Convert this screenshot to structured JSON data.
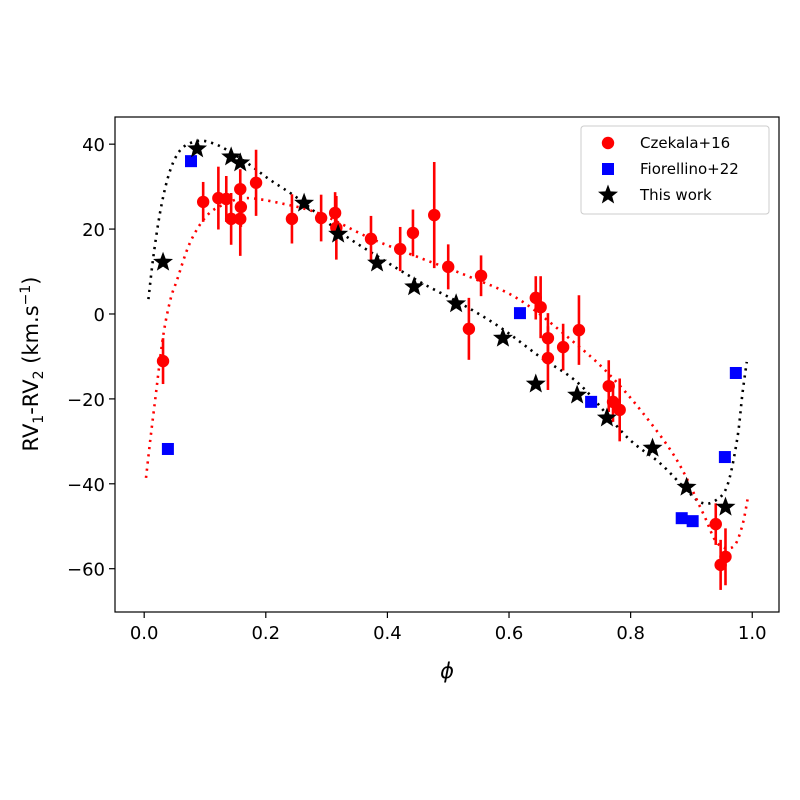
{
  "chart_data": {
    "type": "scatter",
    "title": "",
    "xlabel": "ϕ",
    "ylabel": {
      "base": "RV",
      "sub1": "1",
      "mid": "-RV",
      "sub2": "2",
      "unit_open": " (km.s",
      "sup": "−1",
      "unit_close": ")"
    },
    "xlim": [
      -0.048,
      1.044
    ],
    "ylim": [
      -70.2,
      46.4
    ],
    "xticks": [
      0.0,
      0.2,
      0.4,
      0.6,
      0.8,
      1.0
    ],
    "xtick_labels": [
      "0.0",
      "0.2",
      "0.4",
      "0.6",
      "0.8",
      "1.0"
    ],
    "yticks": [
      -60,
      -40,
      -20,
      0,
      20,
      40
    ],
    "ytick_labels": [
      "−60",
      "−40",
      "−20",
      "0",
      "20",
      "40"
    ],
    "grid": false,
    "legend": {
      "placement": "top-right",
      "entries": [
        {
          "label": "Czekala+16",
          "marker": "circle",
          "color": "#ff0000"
        },
        {
          "label": "Fiorellino+22",
          "marker": "square",
          "color": "#0000ff"
        },
        {
          "label": "This work",
          "marker": "star",
          "color": "#000000"
        }
      ]
    },
    "series": [
      {
        "name": "Czekala+16",
        "marker": "circle",
        "color": "#ff0000",
        "points": [
          {
            "x": 0.031,
            "y": -11.1,
            "err": 5.4
          },
          {
            "x": 0.097,
            "y": 26.4,
            "err": 4.7
          },
          {
            "x": 0.122,
            "y": 27.3,
            "err": 7.4
          },
          {
            "x": 0.135,
            "y": 27.1,
            "err": 5.4
          },
          {
            "x": 0.143,
            "y": 22.4,
            "err": 6.1
          },
          {
            "x": 0.158,
            "y": 22.4,
            "err": 8.7
          },
          {
            "x": 0.158,
            "y": 29.4,
            "err": 4.7
          },
          {
            "x": 0.159,
            "y": 25.2,
            "err": 4.7
          },
          {
            "x": 0.184,
            "y": 30.9,
            "err": 7.8
          },
          {
            "x": 0.243,
            "y": 22.4,
            "err": 5.8
          },
          {
            "x": 0.291,
            "y": 22.6,
            "err": 5.5
          },
          {
            "x": 0.314,
            "y": 23.8,
            "err": 4.9
          },
          {
            "x": 0.316,
            "y": 20.3,
            "err": 7.5
          },
          {
            "x": 0.373,
            "y": 17.7,
            "err": 5.4
          },
          {
            "x": 0.421,
            "y": 15.3,
            "err": 5.2
          },
          {
            "x": 0.442,
            "y": 19.1,
            "err": 5.5
          },
          {
            "x": 0.477,
            "y": 23.3,
            "err": 12.5
          },
          {
            "x": 0.5,
            "y": 11.1,
            "err": 5.3
          },
          {
            "x": 0.534,
            "y": -3.5,
            "err": 7.3
          },
          {
            "x": 0.554,
            "y": 9.0,
            "err": 4.8
          },
          {
            "x": 0.644,
            "y": 3.8,
            "err": 5.1
          },
          {
            "x": 0.652,
            "y": 1.6,
            "err": 7.3
          },
          {
            "x": 0.664,
            "y": -5.7,
            "err": 5.9
          },
          {
            "x": 0.664,
            "y": -10.4,
            "err": 7.5
          },
          {
            "x": 0.689,
            "y": -7.8,
            "err": 5.5
          },
          {
            "x": 0.715,
            "y": -3.8,
            "err": 8.2
          },
          {
            "x": 0.764,
            "y": -17.0,
            "err": 6.1
          },
          {
            "x": 0.771,
            "y": -20.7,
            "err": 4.7
          },
          {
            "x": 0.782,
            "y": -22.6,
            "err": 7.4
          },
          {
            "x": 0.94,
            "y": -49.5,
            "err": 4.9
          },
          {
            "x": 0.948,
            "y": -59.1,
            "err": 5.9
          },
          {
            "x": 0.956,
            "y": -57.2,
            "err": 6.7
          }
        ]
      },
      {
        "name": "Fiorellino+22",
        "marker": "square",
        "color": "#0000ff",
        "points": [
          {
            "x": 0.039,
            "y": -31.8
          },
          {
            "x": 0.077,
            "y": 36.0
          },
          {
            "x": 0.618,
            "y": 0.2
          },
          {
            "x": 0.735,
            "y": -20.7
          },
          {
            "x": 0.884,
            "y": -48.1
          },
          {
            "x": 0.902,
            "y": -48.8
          },
          {
            "x": 0.955,
            "y": -33.7
          },
          {
            "x": 0.973,
            "y": -13.9
          }
        ]
      },
      {
        "name": "This work",
        "marker": "star",
        "color": "#000000",
        "points": [
          {
            "x": 0.031,
            "y": 12.2
          },
          {
            "x": 0.087,
            "y": 38.9
          },
          {
            "x": 0.143,
            "y": 37.0
          },
          {
            "x": 0.158,
            "y": 35.6
          },
          {
            "x": 0.263,
            "y": 26.1
          },
          {
            "x": 0.319,
            "y": 18.8
          },
          {
            "x": 0.383,
            "y": 12.0
          },
          {
            "x": 0.444,
            "y": 6.4
          },
          {
            "x": 0.513,
            "y": 2.4
          },
          {
            "x": 0.59,
            "y": -5.7
          },
          {
            "x": 0.644,
            "y": -16.5
          },
          {
            "x": 0.712,
            "y": -19.1
          },
          {
            "x": 0.761,
            "y": -24.5
          },
          {
            "x": 0.836,
            "y": -31.6
          },
          {
            "x": 0.892,
            "y": -40.8
          },
          {
            "x": 0.956,
            "y": -45.5
          }
        ]
      }
    ],
    "model_curves": [
      {
        "name": "This work model",
        "style": "dotted",
        "color": "#000000",
        "x": [
          0.007,
          0.015,
          0.026,
          0.038,
          0.051,
          0.067,
          0.092,
          0.117,
          0.141,
          0.174,
          0.207,
          0.256,
          0.322,
          0.388,
          0.454,
          0.519,
          0.585,
          0.651,
          0.717,
          0.794,
          0.848,
          0.892,
          0.914,
          0.935,
          0.958,
          0.975,
          0.984,
          0.991
        ],
        "y": [
          3.5,
          13.4,
          23.8,
          31.6,
          36.7,
          39.6,
          40.8,
          40.0,
          38.2,
          35.1,
          31.6,
          26.9,
          19.3,
          13.2,
          7.5,
          2.6,
          -3.1,
          -10.1,
          -16.7,
          -29.0,
          -35.1,
          -41.5,
          -44.3,
          -44.3,
          -40.8,
          -29.7,
          -18.6,
          -11.3
        ]
      },
      {
        "name": "Czekala+16 model",
        "style": "dotted",
        "color": "#ff0000",
        "x": [
          0.003,
          0.01,
          0.018,
          0.031,
          0.043,
          0.054,
          0.076,
          0.104,
          0.136,
          0.169,
          0.224,
          0.289,
          0.371,
          0.454,
          0.536,
          0.618,
          0.712,
          0.766,
          0.82,
          0.876,
          0.919,
          0.942,
          0.968,
          0.983,
          0.993
        ],
        "y": [
          -38.6,
          -29.7,
          -20.3,
          -5.4,
          3.3,
          8.0,
          17.0,
          23.3,
          26.1,
          27.3,
          26.1,
          23.6,
          17.9,
          13.2,
          8.7,
          3.3,
          -7.3,
          -14.4,
          -23.3,
          -34.4,
          -46.9,
          -53.9,
          -54.9,
          -50.2,
          -43.1
        ]
      }
    ]
  }
}
